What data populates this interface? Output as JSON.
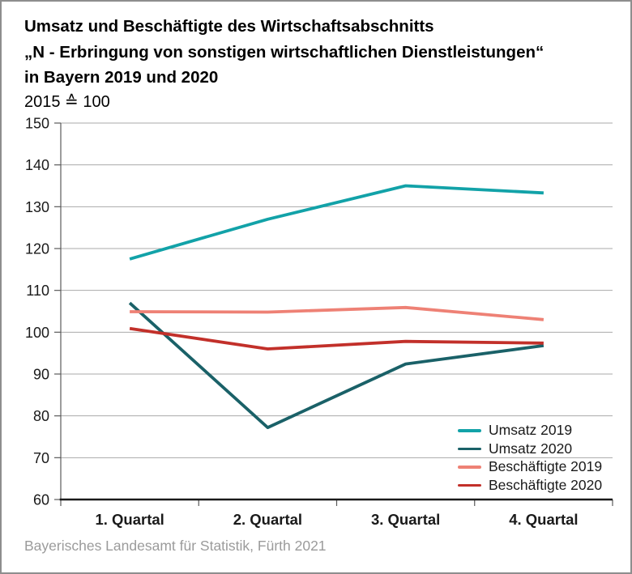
{
  "header": {
    "title_line1": "Umsatz und Beschäftigte des Wirtschaftsabschnitts",
    "title_line2": "„N - Erbringung von sonstigen wirtschaftlichen Dienstleistungen“",
    "title_line3": "in Bayern 2019 und 2020",
    "subtitle": "2015 ≙ 100"
  },
  "chart_data": {
    "type": "line",
    "title": "Umsatz und Beschäftigte des Wirtschaftsabschnitts „N - Erbringung von sonstigen wirtschaftlichen Dienstleistungen“ in Bayern 2019 und 2020",
    "index_note": "2015 ≙ 100",
    "categories": [
      "1. Quartal",
      "2. Quartal",
      "3. Quartal",
      "4. Quartal"
    ],
    "series": [
      {
        "id": "umsatz-2019",
        "name": "Umsatz 2019",
        "color": "#12A2A8",
        "values": [
          117.5,
          127.0,
          135.0,
          133.3
        ]
      },
      {
        "id": "umsatz-2020",
        "name": "Umsatz 2020",
        "color": "#1A6168",
        "values": [
          107.0,
          77.2,
          92.4,
          96.8
        ]
      },
      {
        "id": "beschaeftigte-2019",
        "name": "Beschäftigte 2019",
        "color": "#EE8175",
        "values": [
          104.9,
          104.8,
          105.9,
          103.0
        ]
      },
      {
        "id": "beschaeftigte-2020",
        "name": "Beschäftigte 2020",
        "color": "#C2302A",
        "values": [
          100.9,
          96.0,
          97.8,
          97.4
        ]
      }
    ],
    "xlabel": "",
    "ylabel": "",
    "ylim": [
      60,
      150
    ],
    "yticks": [
      60,
      70,
      80,
      90,
      100,
      110,
      120,
      130,
      140,
      150
    ],
    "grid": true,
    "legend_position": "bottom-right"
  },
  "footer": {
    "source": "Bayerisches Landesamt für Statistik, Fürth 2021"
  },
  "colors": {
    "gridline": "#A9A9A9",
    "axis_major": "#1A1A1A",
    "axis_minor": "#5A5A5A",
    "text": "#1A1A1A",
    "source_text": "#9B9B9B",
    "border": "#8E8E8E"
  }
}
